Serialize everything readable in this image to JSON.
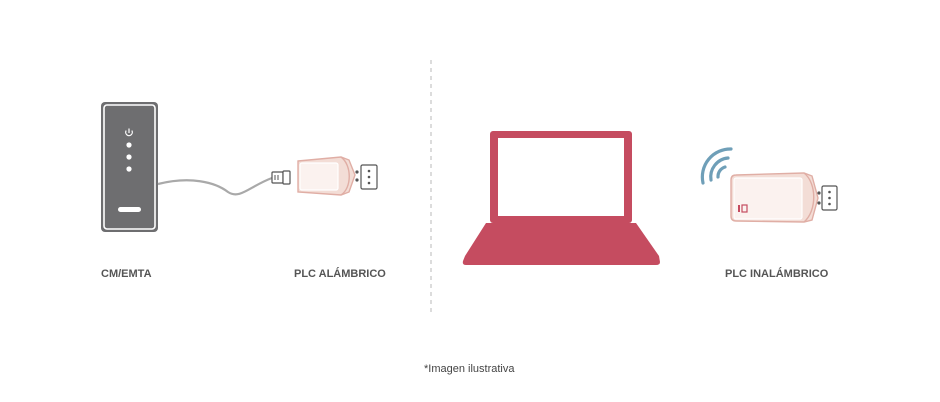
{
  "labels": {
    "cm_emta": "CM/EMTA",
    "plc_wired": "PLC ALÁMBRICO",
    "plc_wireless": "PLC INALÁMBRICO"
  },
  "footnote": "*Imagen ilustrativa",
  "colors": {
    "modem_body": "#6e6e70",
    "modem_frame": "#ffffff",
    "cable": "#a9a9a9",
    "plc_body": "#f3ddd6",
    "plc_edge": "#e0aea5",
    "laptop": "#c54c60",
    "wifi_waves": "#6f9fb8",
    "divider": "#b8b8b8",
    "outlet": "#555555"
  },
  "icons": {
    "power": "power-icon",
    "wifi": "wifi-signal-icon"
  }
}
